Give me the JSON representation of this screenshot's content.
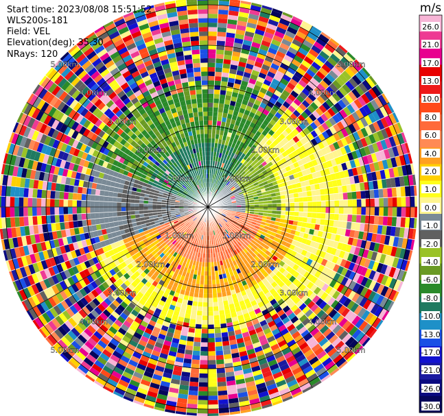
{
  "header": {
    "start_time": "Start time: 2023/08/08 15:51:52",
    "instrument": "WLS200s-181",
    "field": "Field: VEL",
    "elevation": "Elevation(deg): 35.30",
    "nrays": "NRays: 120"
  },
  "chart_data": {
    "type": "heatmap",
    "subtype": "radar-ppi",
    "range_rings_km": [
      1.0,
      2.0,
      3.0,
      4.0,
      5.0
    ],
    "ring_labels": [
      "1.00km",
      "2.00km",
      "3.00km",
      "4.00km",
      "5.00km"
    ],
    "azimuth_spokes_deg": [
      0,
      30,
      60,
      90,
      120,
      150,
      180,
      210,
      240,
      270,
      300,
      330
    ],
    "nrays": 120,
    "colorbar": {
      "unit": "m/s",
      "tick_labels": [
        "26.0",
        "21.0",
        "17.0",
        "13.0",
        "10.0",
        "8.0",
        "6.0",
        "4.0",
        "2.0",
        "1.0",
        "0.0",
        "-1.0",
        "-2.0",
        "-4.0",
        "-6.0",
        "-8.0",
        "-10.0",
        "-13.0",
        "-17.0",
        "-21.0",
        "-26.0",
        "-30.0"
      ],
      "colors": [
        "#f7b5d6",
        "#ee3a93",
        "#e8008f",
        "#e80000",
        "#ee1a1a",
        "#ff4a1a",
        "#ff6a3a",
        "#ff8a55",
        "#ffa020",
        "#ffd000",
        "#ffff1a",
        "#fff590",
        "#7a8a96",
        "#606060",
        "#9ac228",
        "#6a9a24",
        "#2a8a2a",
        "#1f7a60",
        "#1e90c8",
        "#1a50e6",
        "#1212d0",
        "#1a1aa0",
        "#0a0a80",
        "#05055a"
      ]
    }
  }
}
